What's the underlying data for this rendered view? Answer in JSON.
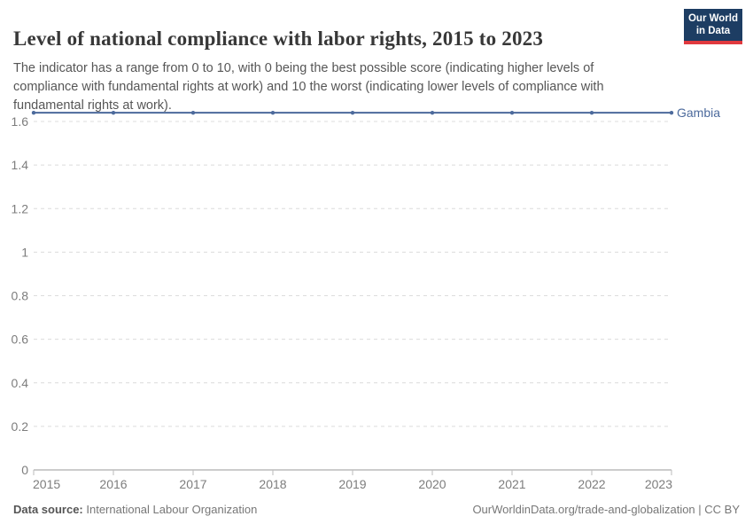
{
  "header": {
    "title": "Level of national compliance with labor rights, 2015 to 2023",
    "subtitle": "The indicator has a range from 0 to 10, with 0 being the best possible score (indicating higher levels of compliance with fundamental rights at work) and 10 the worst (indicating lower levels of compliance with fundamental rights at work).",
    "logo": {
      "line1": "Our World",
      "line2": "in Data",
      "bg_color": "#1d3d63",
      "accent_color": "#e0393e"
    }
  },
  "chart_data": {
    "type": "line",
    "title": "Level of national compliance with labor rights, 2015 to 2023",
    "x": [
      2015,
      2016,
      2017,
      2018,
      2019,
      2020,
      2021,
      2022,
      2023
    ],
    "series": [
      {
        "name": "Gambia",
        "values": [
          1.64,
          1.64,
          1.64,
          1.64,
          1.64,
          1.64,
          1.64,
          1.64,
          1.64
        ],
        "color": "#4c6a9c"
      }
    ],
    "xlabel": "",
    "ylabel": "",
    "ylim": [
      0,
      1.65
    ],
    "yticks": [
      0,
      0.2,
      0.4,
      0.6,
      0.8,
      1,
      1.2,
      1.4,
      1.6
    ],
    "grid": "horizontal-dashed",
    "legend": "end-of-line-label",
    "grid_color": "#dcdcdc",
    "axis_color": "#999999",
    "tick_label_color": "#7d7d7d"
  },
  "footer": {
    "source_label": "Data source:",
    "source_value": " International Labour Organization",
    "right_text": "OurWorldinData.org/trade-and-globalization | CC BY"
  }
}
